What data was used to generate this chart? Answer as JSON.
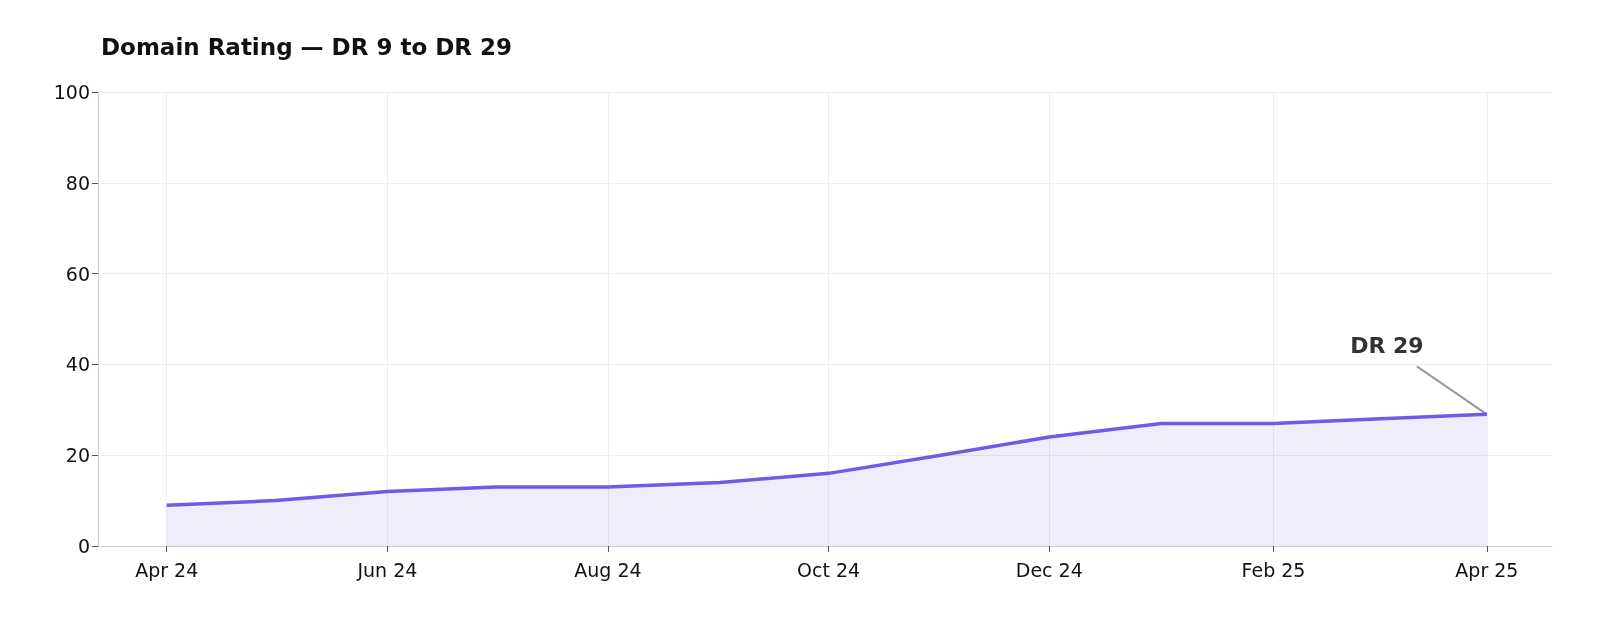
{
  "chart_data": {
    "type": "area",
    "title": "Domain Rating — DR 9 to DR 29",
    "x": [
      "2024-04",
      "2024-05",
      "2024-06",
      "2024-07",
      "2024-08",
      "2024-09",
      "2024-10",
      "2024-11",
      "2024-12",
      "2025-01",
      "2025-02",
      "2025-03",
      "2025-04"
    ],
    "series": [
      {
        "color": "#6c5ce7",
        "values": [
          9,
          10,
          12,
          13,
          13,
          14,
          16,
          20,
          24,
          27,
          27,
          28,
          29
        ]
      }
    ],
    "xlim": [
      "2024-03-13",
      "2025-04-19"
    ],
    "xticks": [
      {
        "value": "2024-04",
        "label": "Apr 24"
      },
      {
        "value": "2024-06",
        "label": "Jun 24"
      },
      {
        "value": "2024-08",
        "label": "Aug 24"
      },
      {
        "value": "2024-10",
        "label": "Oct 24"
      },
      {
        "value": "2024-12",
        "label": "Dec 24"
      },
      {
        "value": "2025-02",
        "label": "Feb 25"
      },
      {
        "value": "2025-04",
        "label": "Apr 25"
      }
    ],
    "ylim": [
      0,
      100
    ],
    "yticks": [
      0,
      20,
      40,
      60,
      80,
      100
    ],
    "annotations": [
      {
        "text": "DR 29",
        "x": "2025-04",
        "y": 29
      }
    ],
    "grid": true
  }
}
